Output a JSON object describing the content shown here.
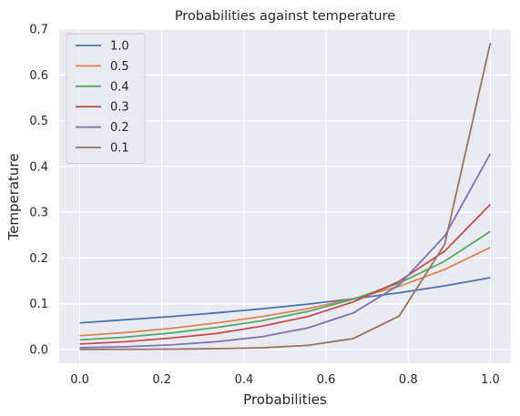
{
  "chart_data": {
    "type": "line",
    "title": "Probabilities against temperature",
    "xlabel": "Probabilities",
    "ylabel": "Temperature",
    "xlim": [
      -0.05,
      1.05
    ],
    "ylim": [
      -0.03,
      0.7
    ],
    "xticks": [
      "0.0",
      "0.2",
      "0.4",
      "0.6",
      "0.8",
      "1.0"
    ],
    "yticks": [
      "0.0",
      "0.1",
      "0.2",
      "0.3",
      "0.4",
      "0.5",
      "0.6",
      "0.7"
    ],
    "grid": true,
    "legend_position": "top-left",
    "x": [
      0.0,
      0.1111,
      0.2222,
      0.3333,
      0.4444,
      0.5556,
      0.6667,
      0.7778,
      0.8889,
      1.0
    ],
    "series": [
      {
        "name": "1.0",
        "color": "#4c72b0",
        "values": [
          0.058,
          0.065,
          0.072,
          0.08,
          0.089,
          0.099,
          0.111,
          0.124,
          0.139,
          0.157
        ]
      },
      {
        "name": "0.5",
        "color": "#dd8452",
        "values": [
          0.03,
          0.037,
          0.046,
          0.058,
          0.072,
          0.089,
          0.111,
          0.138,
          0.175,
          0.223
        ]
      },
      {
        "name": "0.4",
        "color": "#55a868",
        "values": [
          0.021,
          0.027,
          0.036,
          0.048,
          0.063,
          0.083,
          0.11,
          0.145,
          0.193,
          0.258
        ]
      },
      {
        "name": "0.3",
        "color": "#c44e52",
        "values": [
          0.012,
          0.017,
          0.025,
          0.035,
          0.051,
          0.072,
          0.104,
          0.149,
          0.215,
          0.317
        ]
      },
      {
        "name": "0.2",
        "color": "#8172b3",
        "values": [
          0.004,
          0.006,
          0.01,
          0.017,
          0.028,
          0.047,
          0.08,
          0.141,
          0.248,
          0.428
        ]
      },
      {
        "name": "0.1",
        "color": "#937860",
        "values": [
          0.0002,
          0.0004,
          0.0008,
          0.0017,
          0.0037,
          0.009,
          0.024,
          0.073,
          0.23,
          0.67
        ]
      }
    ]
  }
}
